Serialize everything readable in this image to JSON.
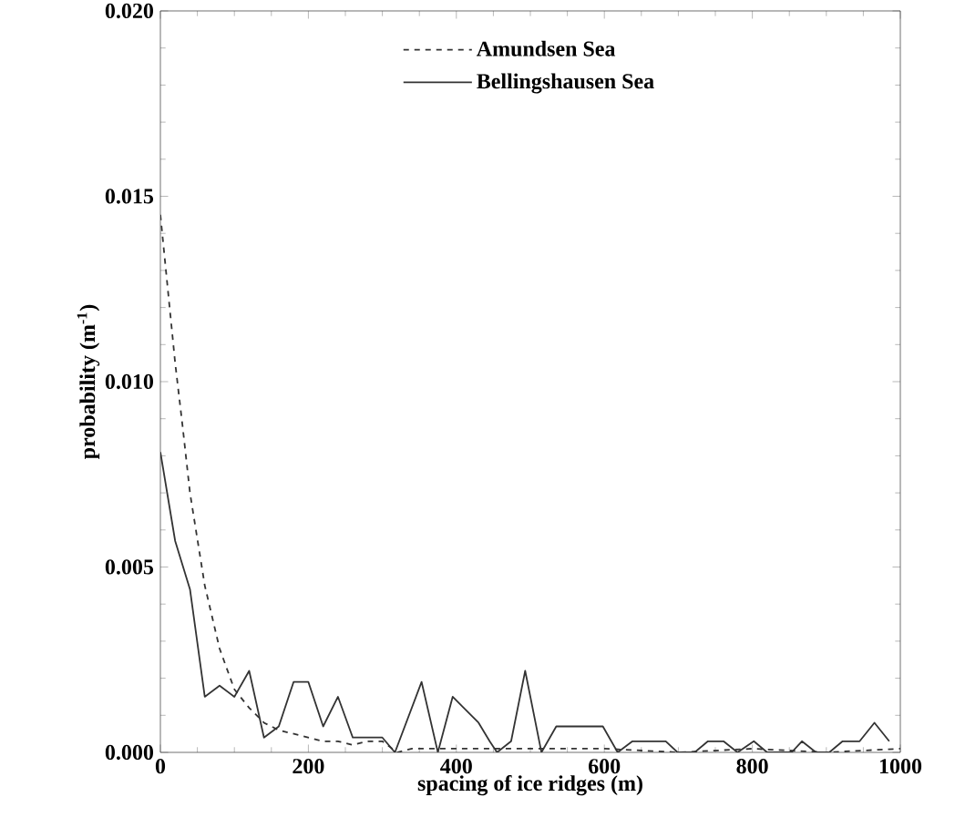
{
  "chart_data": {
    "type": "line",
    "xlabel": "spacing of ice ridges (m)",
    "ylabel": "probability (m$^{-1}$)",
    "xlim": [
      0,
      1000
    ],
    "xticks": [
      0,
      200,
      400,
      600,
      800,
      1000
    ],
    "ylim": [
      0,
      0.02
    ],
    "yticks": [
      {
        "value": 0,
        "label": "0.000"
      },
      {
        "value": 0.005,
        "label": "0.005"
      },
      {
        "value": 0.01,
        "label": "0.010"
      },
      {
        "value": 0.015,
        "label": "0.015"
      },
      {
        "value": 0.02,
        "label": "0.020"
      }
    ],
    "grid": false,
    "legend": "top",
    "marker": "none",
    "series": [
      {
        "name": "Amundsen Sea",
        "color": "#333333",
        "line_style": "dashed",
        "x": [
          0,
          10,
          20,
          30,
          40,
          60,
          80,
          100,
          120,
          140,
          160,
          180,
          200,
          220,
          240,
          260,
          280,
          300,
          320,
          340,
          400,
          500,
          600,
          700,
          800,
          900,
          1000
        ],
        "values": [
          0.0145,
          0.0125,
          0.0105,
          0.0088,
          0.007,
          0.0045,
          0.0028,
          0.0017,
          0.0012,
          0.0008,
          0.0006,
          0.0005,
          0.0004,
          0.0003,
          0.0003,
          0.0002,
          0.0003,
          0.0003,
          0.0,
          0.0001,
          0.0001,
          0.0001,
          0.0001,
          0.0,
          0.0001,
          0.0,
          0.0001
        ]
      },
      {
        "name": "Bellingshausen Sea",
        "color": "#333333",
        "line_style": "solid",
        "x": [
          0,
          20,
          40,
          60,
          80,
          100,
          120,
          140,
          160,
          180,
          200,
          220,
          240,
          260,
          300,
          317,
          353,
          375,
          395,
          430,
          445,
          455,
          474,
          493,
          515,
          535,
          598,
          618,
          638,
          683,
          699,
          722,
          740,
          761,
          780,
          802,
          820,
          853,
          867,
          886,
          904,
          922,
          945,
          965,
          985
        ],
        "values": [
          0.0081,
          0.0057,
          0.0044,
          0.0015,
          0.0018,
          0.0015,
          0.0022,
          0.0004,
          0.0007,
          0.0019,
          0.0019,
          0.0007,
          0.0015,
          0.0004,
          0.0004,
          0.0,
          0.0019,
          0.0,
          0.0015,
          0.0008,
          0.0003,
          0.0,
          0.0003,
          0.0022,
          0.0,
          0.0007,
          0.0007,
          0.0,
          0.0003,
          0.0003,
          0.0,
          0.0,
          0.0003,
          0.0003,
          0.0,
          0.0003,
          0.0,
          0.0,
          0.0003,
          0.0,
          0.0,
          0.0003,
          0.0003,
          0.0008,
          0.0003
        ]
      }
    ]
  }
}
